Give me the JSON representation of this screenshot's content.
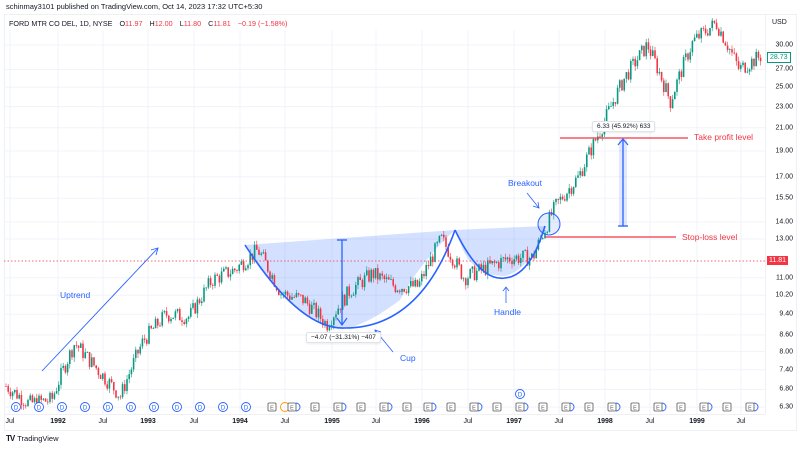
{
  "header": {
    "publisher": "schinmay3101 published on TradingView.com, Oct 14, 2023 17:32 UTC+5:30"
  },
  "legend": {
    "symbol": "FORD MTR CO DEL, 1D, NYSE",
    "open_label": "O",
    "open": "11.97",
    "high_label": "H",
    "high": "12.00",
    "low_label": "L",
    "low": "11.80",
    "close_label": "C",
    "close": "11.81",
    "change": "−0.19 (−1.58%)"
  },
  "price_axis": {
    "currency": "USD",
    "ticks": [
      "30.00",
      "27.00",
      "25.00",
      "23.00",
      "21.00",
      "19.00",
      "17.00",
      "15.50",
      "14.00",
      "13.00",
      "11.00",
      "10.20",
      "9.40",
      "8.60",
      "8.00",
      "7.40",
      "6.80",
      "6.30"
    ],
    "last_price_tag": "28.73",
    "current_price_tag": "11.81"
  },
  "time_axis": {
    "ticks": [
      "Jul",
      "1992",
      "Jul",
      "1993",
      "Jul",
      "1994",
      "Jul",
      "1995",
      "Jul",
      "1996",
      "Jul",
      "1997",
      "Jul",
      "1998",
      "Jul",
      "1999",
      "Jul"
    ]
  },
  "annotations": {
    "uptrend": "Uptrend",
    "cup": "Cup",
    "handle": "Handle",
    "breakout": "Breakout",
    "take_profit": "Take profit level",
    "stop_loss": "Stop-loss level",
    "cup_measure": "−4.07 (−31.31%) −407",
    "target_measure": "6.33 (45.92%) 633"
  },
  "colors": {
    "up": "#089981",
    "down": "#f23645",
    "drawing": "#2962ff",
    "fill": "rgba(41,98,255,0.2)",
    "level": "#f23645"
  },
  "events": {
    "dividend_label": "D",
    "earnings_label": "E"
  },
  "footer": {
    "brand": "TradingView",
    "logo": "TV"
  },
  "chart_data": {
    "type": "line",
    "title": "FORD MTR CO DEL, 1D, NYSE — Cup and Handle pattern",
    "xlabel": "",
    "ylabel": "USD",
    "scale": "log",
    "ylim": [
      6.1,
      33.5
    ],
    "grid": true,
    "x": [
      "1991-07",
      "1991-10",
      "1992-01",
      "1992-04",
      "1992-07",
      "1992-10",
      "1993-01",
      "1993-04",
      "1993-07",
      "1993-10",
      "1994-01",
      "1994-04",
      "1994-07",
      "1994-10",
      "1995-01",
      "1995-04",
      "1995-07",
      "1995-10",
      "1996-01",
      "1996-04",
      "1996-07",
      "1996-10",
      "1997-01",
      "1997-04",
      "1997-07",
      "1997-10",
      "1998-01",
      "1998-04",
      "1998-07",
      "1998-10",
      "1999-01",
      "1999-04",
      "1999-07",
      "1999-10"
    ],
    "series": [
      {
        "name": "FORD close (approx.)",
        "values": [
          6.9,
          6.4,
          6.5,
          8.3,
          7.4,
          6.6,
          8.4,
          9.4,
          9.3,
          10.9,
          11.4,
          12.4,
          10.3,
          10.0,
          9.0,
          10.4,
          11.2,
          10.6,
          10.6,
          13.0,
          11.0,
          11.5,
          12.0,
          12.0,
          15.0,
          17.0,
          21.0,
          26.0,
          30.0,
          23.5,
          30.5,
          33.0,
          27.0,
          28.7
        ]
      }
    ],
    "levels": [
      {
        "name": "Take profit level",
        "value": 20.0
      },
      {
        "name": "Stop-loss level",
        "value": 13.0
      },
      {
        "name": "Current price",
        "value": 11.81
      }
    ],
    "measurements": [
      {
        "name": "Cup depth",
        "value": -4.07,
        "percent": -31.31
      },
      {
        "name": "Target projection",
        "value": 6.33,
        "percent": 45.92
      }
    ],
    "legend_position": "top-left"
  }
}
